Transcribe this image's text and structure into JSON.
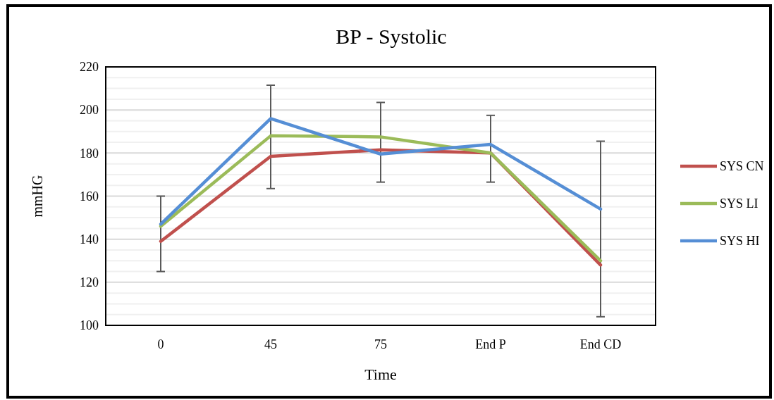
{
  "chart_data": {
    "type": "line",
    "title": "BP - Systolic",
    "xlabel": "Time",
    "ylabel": "mmHG",
    "categories": [
      "0",
      "45",
      "75",
      "End P",
      "End CD"
    ],
    "series": [
      {
        "name": "SYS CN",
        "color": "#c0504d",
        "values": [
          139,
          178.5,
          181.5,
          180,
          128
        ]
      },
      {
        "name": "SYS LI",
        "color": "#9bbb59",
        "values": [
          146,
          188,
          187.5,
          180,
          130
        ],
        "errors": [
          [
            125,
            160
          ],
          [
            163.5,
            211.5
          ],
          [
            166.5,
            203.5
          ],
          [
            166.5,
            197.5
          ],
          [
            104,
            185.5
          ]
        ]
      },
      {
        "name": "SYS HI",
        "color": "#558ed5",
        "values": [
          147,
          196,
          179.5,
          184,
          154
        ]
      }
    ],
    "ylim": [
      100,
      220
    ],
    "yticks": [
      100,
      {
        "value": 105,
        "label": null
      },
      {
        "value": 110,
        "label": null
      },
      {
        "value": 115,
        "label": null
      },
      120,
      {
        "value": 125,
        "label": null
      },
      {
        "value": 130,
        "label": null
      },
      {
        "value": 135,
        "label": null
      },
      140,
      {
        "value": 145,
        "label": null
      },
      {
        "value": 150,
        "label": null
      },
      {
        "value": 155,
        "label": null
      },
      160,
      {
        "value": 165,
        "label": null
      },
      {
        "value": 170,
        "label": null
      },
      {
        "value": 175,
        "label": null
      },
      180,
      {
        "value": 185,
        "label": null
      },
      {
        "value": 190,
        "label": null
      },
      {
        "value": 195,
        "label": null
      },
      200,
      {
        "value": 205,
        "label": null
      },
      {
        "value": 210,
        "label": null
      },
      {
        "value": 215,
        "label": null
      },
      220
    ],
    "grid": true,
    "legend": "right",
    "line_style": "solid"
  }
}
